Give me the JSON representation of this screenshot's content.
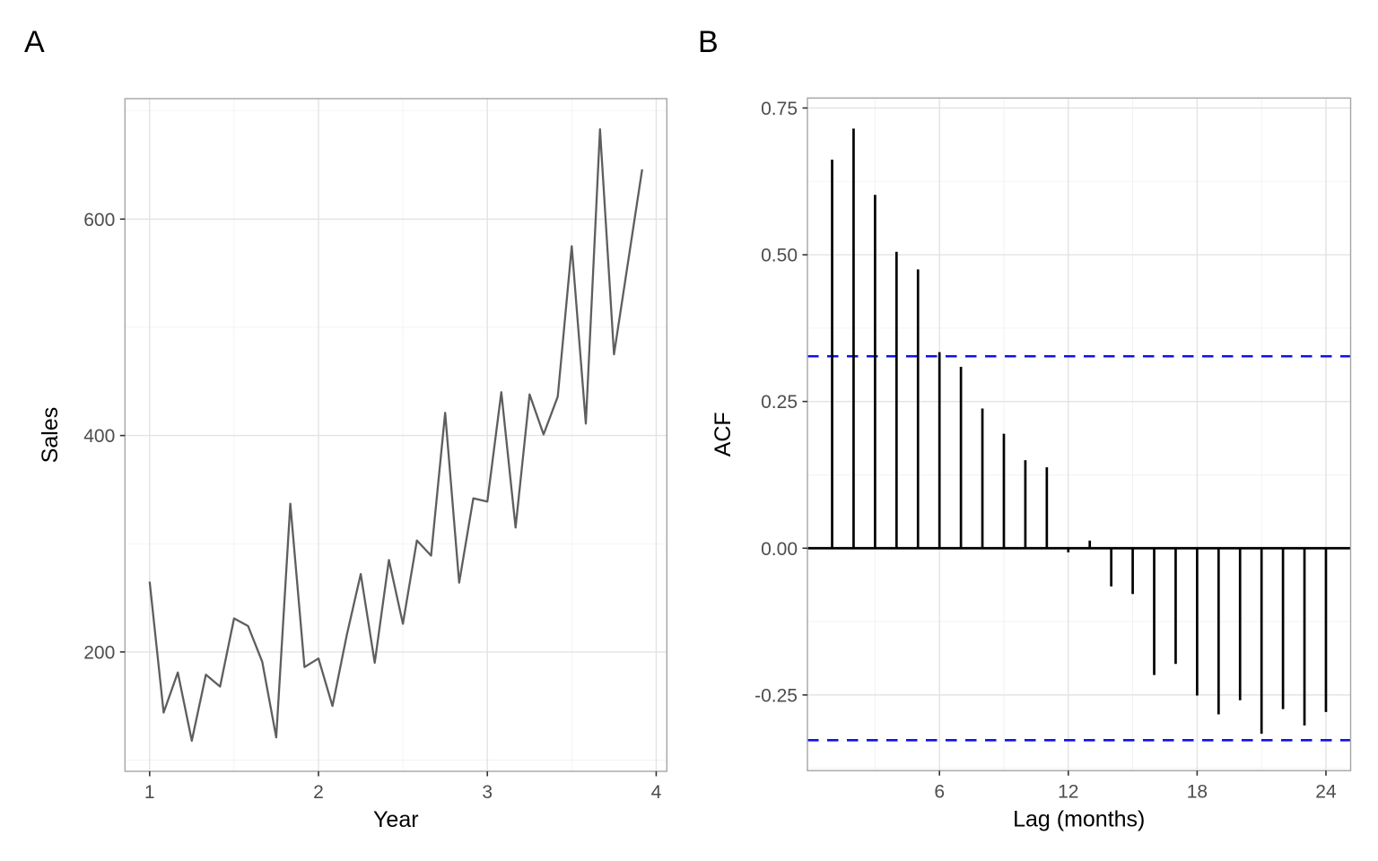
{
  "figure": {
    "background": "#ffffff",
    "panel_labels": [
      "A",
      "B"
    ]
  },
  "colors": {
    "background": "#ffffff",
    "grid_major": "#e3e3e3",
    "grid_minor": "#f0f0f0",
    "panel_border": "#a6a6a6",
    "tick_mark": "#333333",
    "tick_label": "#4d4d4d",
    "axis_title": "#000000",
    "panel_label": "#000000",
    "sales_line": "#5e5e5e",
    "acf_bar": "#000000",
    "zero_line": "#000000",
    "conf_band": "#1010ee"
  },
  "chart_data": [
    {
      "id": "sales-series",
      "type": "line",
      "panel_label": "A",
      "xlabel": "Year",
      "ylabel": "Sales",
      "xlim": [
        0.854,
        4.063
      ],
      "ylim": [
        89.7,
        711.3
      ],
      "x_ticks": [
        {
          "v": 1,
          "label": "1"
        },
        {
          "v": 2,
          "label": "2"
        },
        {
          "v": 3,
          "label": "3"
        },
        {
          "v": 4,
          "label": "4"
        }
      ],
      "x_minor": [
        1.5,
        2.5,
        3.5
      ],
      "y_ticks": [
        {
          "v": 200,
          "label": "200"
        },
        {
          "v": 400,
          "label": "400"
        },
        {
          "v": 600,
          "label": "600"
        }
      ],
      "y_minor": [
        100,
        300,
        500,
        700
      ],
      "grid": true,
      "legend": "none",
      "x": [
        1.0,
        1.083,
        1.167,
        1.25,
        1.333,
        1.417,
        1.5,
        1.583,
        1.667,
        1.75,
        1.833,
        1.917,
        2.0,
        2.083,
        2.167,
        2.25,
        2.333,
        2.417,
        2.5,
        2.583,
        2.667,
        2.75,
        2.833,
        2.917,
        3.0,
        3.083,
        3.167,
        3.25,
        3.333,
        3.417,
        3.5,
        3.583,
        3.667,
        3.75,
        3.833,
        3.917
      ],
      "y": [
        265,
        144,
        181,
        118,
        179,
        168,
        231,
        224,
        191,
        121,
        337,
        186,
        194,
        150,
        215,
        272,
        190,
        285,
        226,
        303,
        289,
        421,
        264,
        342,
        339,
        440,
        315,
        438,
        401,
        436,
        575,
        411,
        683,
        475,
        560,
        646
      ]
    },
    {
      "id": "acf",
      "type": "bar",
      "panel_label": "B",
      "xlabel": "Lag (months)",
      "ylabel": "ACF",
      "xlim": [
        -0.15,
        25.15
      ],
      "ylim": [
        -0.379,
        0.767
      ],
      "x_ticks": [
        {
          "v": 6,
          "label": "6"
        },
        {
          "v": 12,
          "label": "12"
        },
        {
          "v": 18,
          "label": "18"
        },
        {
          "v": 24,
          "label": "24"
        }
      ],
      "x_minor": [
        3,
        9,
        15,
        21
      ],
      "y_ticks": [
        {
          "v": 0.75,
          "label": "0.75"
        },
        {
          "v": 0.5,
          "label": "0.50"
        },
        {
          "v": 0.25,
          "label": "0.25"
        },
        {
          "v": 0.0,
          "label": "0.00"
        },
        {
          "v": -0.25,
          "label": "-0.25"
        }
      ],
      "y_minor": [
        0.625,
        0.375,
        0.125,
        -0.125,
        -0.375
      ],
      "grid": true,
      "legend": "none",
      "x": [
        1,
        2,
        3,
        4,
        5,
        6,
        7,
        8,
        9,
        10,
        11,
        12,
        13,
        14,
        15,
        16,
        17,
        18,
        19,
        20,
        21,
        22,
        23,
        24
      ],
      "y": [
        0.662,
        0.715,
        0.602,
        0.505,
        0.475,
        0.334,
        0.309,
        0.238,
        0.195,
        0.15,
        0.138,
        -0.007,
        0.013,
        -0.065,
        -0.078,
        -0.216,
        -0.197,
        -0.251,
        -0.283,
        -0.259,
        -0.316,
        -0.274,
        -0.302,
        -0.279
      ],
      "zero_line": 0,
      "conf_bands": [
        0.327,
        -0.327
      ]
    }
  ]
}
